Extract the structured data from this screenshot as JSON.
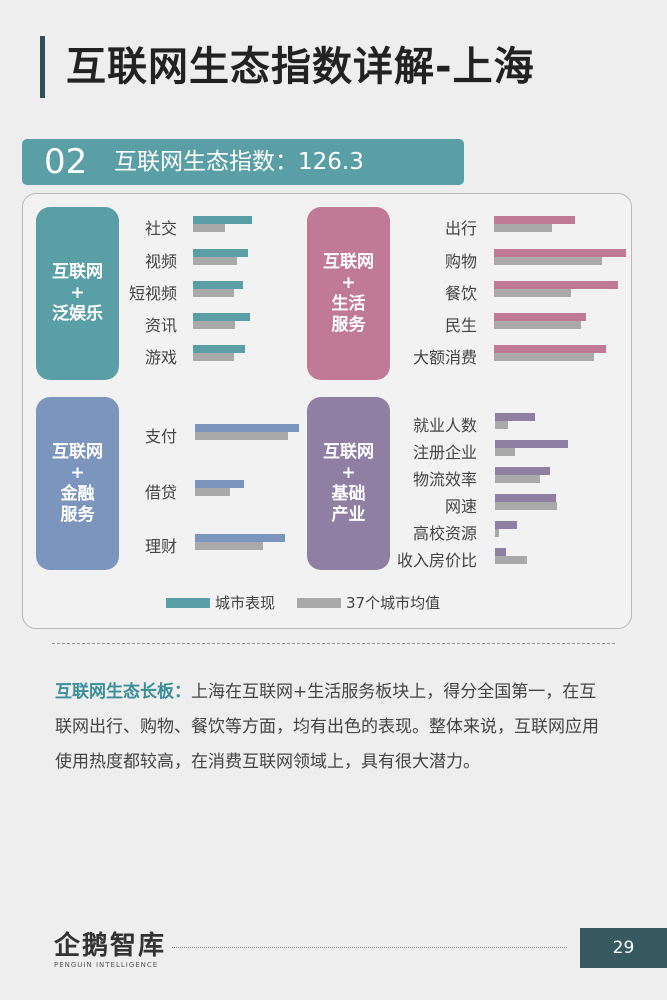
{
  "title": "互联网生态指数详解-上海",
  "index_banner": {
    "number": "02",
    "label": "互联网生态指数：126.3"
  },
  "chart_data": [
    {
      "type": "bar",
      "group": "互联网+泛娱乐",
      "group_lines": [
        "互联网",
        "+",
        "泛娱乐"
      ],
      "categories": [
        "社交",
        "视频",
        "短视频",
        "资讯",
        "游戏"
      ],
      "series": [
        {
          "name": "城市表现",
          "values": [
            76,
            72,
            65,
            74,
            68
          ]
        },
        {
          "name": "37个城市均值",
          "values": [
            42,
            57,
            53,
            54,
            53
          ]
        }
      ],
      "xlim": [
        0,
        100
      ]
    },
    {
      "type": "bar",
      "group": "互联网+生活服务",
      "group_lines": [
        "互联网",
        "+",
        "生活",
        "服务"
      ],
      "categories": [
        "出行",
        "购物",
        "餐饮",
        "民生",
        "大额消费"
      ],
      "series": [
        {
          "name": "城市表现",
          "values": [
            61,
            100,
            94,
            70,
            85
          ]
        },
        {
          "name": "37个城市均值",
          "values": [
            44,
            82,
            58,
            66,
            76
          ]
        }
      ],
      "xlim": [
        0,
        100
      ]
    },
    {
      "type": "bar",
      "group": "互联网+金融服务",
      "group_lines": [
        "互联网",
        "+",
        "金融",
        "服务"
      ],
      "categories": [
        "支付",
        "借贷",
        "理财"
      ],
      "series": [
        {
          "name": "城市表现",
          "values": [
            100,
            47,
            87
          ]
        },
        {
          "name": "37个城市均值",
          "values": [
            89,
            34,
            65
          ]
        }
      ],
      "xlim": [
        0,
        100
      ]
    },
    {
      "type": "bar",
      "group": "互联网+基础产业",
      "group_lines": [
        "互联网",
        "+",
        "基础",
        "产业"
      ],
      "categories": [
        "就业人数",
        "注册企业",
        "物流效率",
        "网速",
        "高校资源",
        "收入房价比"
      ],
      "series": [
        {
          "name": "城市表现",
          "values": [
            30,
            55,
            42,
            46,
            17,
            8
          ]
        },
        {
          "name": "37个城市均值",
          "values": [
            10,
            15,
            34,
            47,
            3,
            24
          ]
        }
      ],
      "xlim": [
        0,
        100
      ]
    }
  ],
  "legend": {
    "city": "城市表现",
    "avg": "37个城市均值"
  },
  "summary": {
    "highlight": "互联网生态长板：",
    "text": "上海在互联网+生活服务板块上，得分全国第一，在互联网出行、购物、餐饮等方面，均有出色的表现。整体来说，互联网应用使用热度都较高，在消费互联网领域上，具有很大潜力。"
  },
  "footer": {
    "logo": "企鹅智库",
    "logo_sub": "PENGUIN INTELLIGENCE",
    "page": "29"
  },
  "colors": {
    "teal": "#5a9ea6",
    "pink": "#c07a95",
    "blue": "#7c95bd",
    "purple": "#8f7fa3",
    "avg_gray": "#a9a9a9",
    "title_bar": "#2f4f55",
    "page_box": "#365a5f"
  }
}
